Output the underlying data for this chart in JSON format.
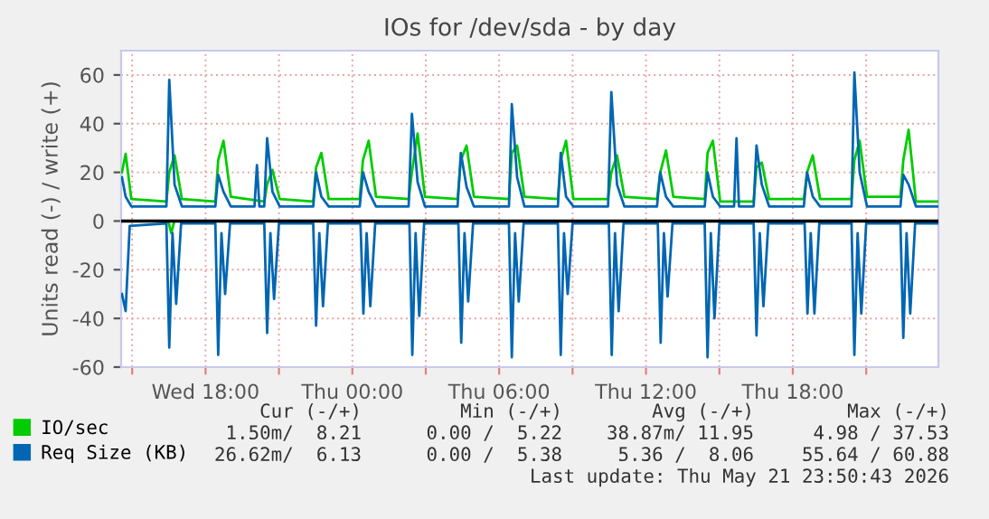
{
  "chart_data": {
    "type": "line",
    "title": "IOs for /dev/sda - by day",
    "ylabel": "Units read (-) / write (+)",
    "xlim": [
      "2026-05-20T14:33",
      "2026-05-21T23:57"
    ],
    "ylim": [
      -60,
      70
    ],
    "xticks": [
      {
        "value": "2026-05-20T15:00",
        "label": null
      },
      {
        "value": "2026-05-20T18:00",
        "label": "Wed 18:00"
      },
      {
        "value": "2026-05-20T21:00",
        "label": null
      },
      {
        "value": "2026-05-21T00:00",
        "label": "Thu 00:00"
      },
      {
        "value": "2026-05-21T03:00",
        "label": null
      },
      {
        "value": "2026-05-21T06:00",
        "label": "Thu 06:00"
      },
      {
        "value": "2026-05-21T09:00",
        "label": null
      },
      {
        "value": "2026-05-21T12:00",
        "label": "Thu 12:00"
      },
      {
        "value": "2026-05-21T15:00",
        "label": null
      },
      {
        "value": "2026-05-21T18:00",
        "label": "Thu 18:00"
      },
      {
        "value": "2026-05-21T21:00",
        "label": null
      }
    ],
    "yticks": [
      -60,
      -40,
      -20,
      0,
      20,
      40,
      60
    ],
    "grid": true,
    "legend": "bottom left",
    "marker": "none",
    "line_style": "solid",
    "ref_lines": [
      {
        "axis": "y",
        "value": 0,
        "label": null,
        "color": "#000000"
      }
    ],
    "series": [
      {
        "name": "IO/sec",
        "color": "#00cc00",
        "x": [
          "2026-05-20T14:35",
          "2026-05-20T14:44",
          "2026-05-20T14:58",
          "2026-05-20T16:24",
          "2026-05-20T16:31",
          "2026-05-20T16:44",
          "2026-05-20T17:02",
          "2026-05-20T18:24",
          "2026-05-20T18:31",
          "2026-05-20T18:44",
          "2026-05-20T19:02",
          "2026-05-20T20:24",
          "2026-05-20T20:31",
          "2026-05-20T20:44",
          "2026-05-20T21:02",
          "2026-05-20T22:24",
          "2026-05-20T22:31",
          "2026-05-20T22:44",
          "2026-05-20T23:02",
          "2026-05-21T00:18",
          "2026-05-21T00:26",
          "2026-05-21T00:40",
          "2026-05-21T00:58",
          "2026-05-21T02:18",
          "2026-05-21T02:26",
          "2026-05-21T02:40",
          "2026-05-21T02:58",
          "2026-05-21T04:18",
          "2026-05-21T04:26",
          "2026-05-21T04:40",
          "2026-05-21T04:58",
          "2026-05-21T06:24",
          "2026-05-21T06:31",
          "2026-05-21T06:44",
          "2026-05-21T07:02",
          "2026-05-21T08:24",
          "2026-05-21T08:31",
          "2026-05-21T08:44",
          "2026-05-21T09:02",
          "2026-05-21T10:27",
          "2026-05-21T10:35",
          "2026-05-21T10:49",
          "2026-05-21T11:07",
          "2026-05-21T12:27",
          "2026-05-21T12:35",
          "2026-05-21T12:49",
          "2026-05-21T13:07",
          "2026-05-21T14:24",
          "2026-05-21T14:31",
          "2026-05-21T14:44",
          "2026-05-21T15:02",
          "2026-05-21T16:24",
          "2026-05-21T16:31",
          "2026-05-21T16:44",
          "2026-05-21T17:02",
          "2026-05-21T18:27",
          "2026-05-21T18:35",
          "2026-05-21T18:49",
          "2026-05-21T19:07",
          "2026-05-21T20:24",
          "2026-05-21T20:31",
          "2026-05-21T20:44",
          "2026-05-21T21:02",
          "2026-05-21T22:24",
          "2026-05-21T22:31",
          "2026-05-21T22:44",
          "2026-05-21T23:02",
          "2026-05-21T23:56"
        ],
        "values": [
          20,
          27.6,
          9,
          8,
          20,
          27,
          9,
          8,
          25,
          33,
          10,
          8,
          15,
          21,
          9,
          8,
          22,
          28,
          9,
          9,
          25,
          33,
          10,
          9,
          20,
          36,
          10,
          9,
          25,
          31,
          10,
          9,
          28,
          31,
          10,
          9,
          25,
          33,
          9,
          9,
          20,
          27,
          10,
          9,
          20,
          29,
          10,
          9,
          28,
          33,
          8,
          8,
          22,
          24,
          9,
          9,
          20,
          27,
          9,
          9,
          25,
          33,
          10,
          10,
          25,
          37.5,
          8,
          8
        ]
      },
      {
        "color": "#00cc00",
        "x": [
          "2026-05-20T16:30",
          "2026-05-20T16:36",
          "2026-05-20T16:42"
        ],
        "values": [
          -1,
          -5,
          -1
        ]
      },
      {
        "name": "Req Size (KB)",
        "color": "#0066b3",
        "x": [
          "2026-05-20T14:35",
          "2026-05-20T14:44",
          "2026-05-20T14:58",
          "2026-05-20T16:24",
          "2026-05-20T16:31",
          "2026-05-20T16:44",
          "2026-05-20T17:02",
          "2026-05-20T18:24",
          "2026-05-20T18:31",
          "2026-05-20T18:44",
          "2026-05-20T19:02",
          "2026-05-20T20:00",
          "2026-05-20T20:06",
          "2026-05-20T20:12",
          "2026-05-20T20:24",
          "2026-05-20T20:31",
          "2026-05-20T20:44",
          "2026-05-20T21:02",
          "2026-05-20T22:24",
          "2026-05-20T22:31",
          "2026-05-20T22:44",
          "2026-05-20T23:02",
          "2026-05-21T00:18",
          "2026-05-21T00:26",
          "2026-05-21T00:40",
          "2026-05-21T00:58",
          "2026-05-21T02:18",
          "2026-05-21T02:26",
          "2026-05-21T02:40",
          "2026-05-21T02:58",
          "2026-05-21T04:18",
          "2026-05-21T04:26",
          "2026-05-21T04:40",
          "2026-05-21T04:58",
          "2026-05-21T06:24",
          "2026-05-21T06:31",
          "2026-05-21T06:44",
          "2026-05-21T07:02",
          "2026-05-21T08:24",
          "2026-05-21T08:31",
          "2026-05-21T08:44",
          "2026-05-21T09:02",
          "2026-05-21T10:27",
          "2026-05-21T10:35",
          "2026-05-21T10:49",
          "2026-05-21T11:07",
          "2026-05-21T12:27",
          "2026-05-21T12:35",
          "2026-05-21T12:49",
          "2026-05-21T13:07",
          "2026-05-21T14:24",
          "2026-05-21T14:31",
          "2026-05-21T14:44",
          "2026-05-21T15:02",
          "2026-05-21T15:36",
          "2026-05-21T15:42",
          "2026-05-21T15:48",
          "2026-05-21T16:24",
          "2026-05-21T16:31",
          "2026-05-21T16:44",
          "2026-05-21T17:02",
          "2026-05-21T18:27",
          "2026-05-21T18:35",
          "2026-05-21T18:49",
          "2026-05-21T19:07",
          "2026-05-21T20:24",
          "2026-05-21T20:31",
          "2026-05-21T20:44",
          "2026-05-21T21:02",
          "2026-05-21T22:24",
          "2026-05-21T22:31",
          "2026-05-21T22:44",
          "2026-05-21T23:02",
          "2026-05-21T23:56"
        ],
        "values": [
          18,
          10,
          6,
          6,
          58,
          15,
          6,
          6,
          19,
          12,
          6,
          6,
          23,
          6,
          6,
          34,
          12,
          6,
          6,
          20,
          10,
          6,
          6,
          20,
          12,
          6,
          6,
          44,
          16,
          6,
          6,
          28,
          14,
          6,
          6,
          48,
          18,
          6,
          6,
          28,
          10,
          6,
          6,
          53,
          15,
          6,
          6,
          20,
          10,
          6,
          6,
          20,
          10,
          6,
          6,
          34,
          6,
          6,
          31,
          15,
          6,
          6,
          20,
          10,
          6,
          6,
          61,
          20,
          6,
          6,
          19,
          15,
          6,
          6
        ]
      },
      {
        "color": "#0066b3",
        "x": [
          "2026-05-20T14:35",
          "2026-05-20T14:44",
          "2026-05-20T14:54",
          "2026-05-20T16:24",
          "2026-05-20T16:31",
          "2026-05-20T16:39",
          "2026-05-20T16:48",
          "2026-05-20T17:00",
          "2026-05-20T18:24",
          "2026-05-20T18:31",
          "2026-05-20T18:39",
          "2026-05-20T18:48",
          "2026-05-20T19:00",
          "2026-05-20T20:24",
          "2026-05-20T20:31",
          "2026-05-20T20:39",
          "2026-05-20T20:48",
          "2026-05-20T21:00",
          "2026-05-20T22:24",
          "2026-05-20T22:31",
          "2026-05-20T22:39",
          "2026-05-20T22:48",
          "2026-05-20T23:00",
          "2026-05-21T00:20",
          "2026-05-21T00:27",
          "2026-05-21T00:35",
          "2026-05-21T00:44",
          "2026-05-21T00:56",
          "2026-05-21T02:20",
          "2026-05-21T02:27",
          "2026-05-21T02:35",
          "2026-05-21T02:44",
          "2026-05-21T02:56",
          "2026-05-21T04:20",
          "2026-05-21T04:27",
          "2026-05-21T04:35",
          "2026-05-21T04:44",
          "2026-05-21T04:56",
          "2026-05-21T06:24",
          "2026-05-21T06:31",
          "2026-05-21T06:39",
          "2026-05-21T06:48",
          "2026-05-21T07:00",
          "2026-05-21T08:24",
          "2026-05-21T08:31",
          "2026-05-21T08:39",
          "2026-05-21T08:48",
          "2026-05-21T09:00",
          "2026-05-21T10:29",
          "2026-05-21T10:36",
          "2026-05-21T10:44",
          "2026-05-21T10:53",
          "2026-05-21T11:05",
          "2026-05-21T12:29",
          "2026-05-21T12:36",
          "2026-05-21T12:44",
          "2026-05-21T12:53",
          "2026-05-21T13:05",
          "2026-05-21T14:24",
          "2026-05-21T14:31",
          "2026-05-21T14:39",
          "2026-05-21T14:48",
          "2026-05-21T15:00",
          "2026-05-21T16:24",
          "2026-05-21T16:31",
          "2026-05-21T16:39",
          "2026-05-21T16:48",
          "2026-05-21T17:00",
          "2026-05-21T18:29",
          "2026-05-21T18:36",
          "2026-05-21T18:44",
          "2026-05-21T18:53",
          "2026-05-21T19:05",
          "2026-05-21T20:24",
          "2026-05-21T20:31",
          "2026-05-21T20:39",
          "2026-05-21T20:48",
          "2026-05-21T21:00",
          "2026-05-21T22:24",
          "2026-05-21T22:31",
          "2026-05-21T22:39",
          "2026-05-21T22:48",
          "2026-05-21T23:00",
          "2026-05-21T23:56"
        ],
        "values": [
          -30,
          -37,
          -2,
          -1,
          -52,
          -5,
          -34,
          -1,
          -1,
          -55,
          -5,
          -30,
          -1,
          -1,
          -46,
          -5,
          -32,
          -1,
          -1,
          -43,
          -5,
          -35,
          -1,
          -1,
          -38,
          -5,
          -35,
          -1,
          -1,
          -55,
          -5,
          -39,
          -1,
          -1,
          -50,
          -5,
          -33,
          -1,
          -1,
          -56,
          -5,
          -33,
          -1,
          -1,
          -55,
          -5,
          -30,
          -1,
          -1,
          -55,
          -5,
          -37,
          -1,
          -1,
          -50,
          -5,
          -31,
          -1,
          -1,
          -56,
          -5,
          -40,
          -1,
          -1,
          -47,
          -5,
          -35,
          -1,
          -1,
          -38,
          -5,
          -38,
          -1,
          -1,
          -55,
          -5,
          -38,
          -1,
          -1,
          -48,
          -5,
          -38,
          -1,
          -1
        ]
      }
    ],
    "annotations": [
      "Cur (-/+)",
      "Min (-/+)",
      "Avg (-/+)",
      "Max (-/+)",
      "1.50m/  8.21",
      "0.00 /  5.22",
      "38.87m/ 11.95",
      "4.98 / 37.53",
      "26.62m/  6.13",
      "0.00 /  5.38",
      "5.36 /  8.06",
      "55.64 / 60.88",
      "Last update: Thu May 21 23:50:43 2026"
    ]
  }
}
